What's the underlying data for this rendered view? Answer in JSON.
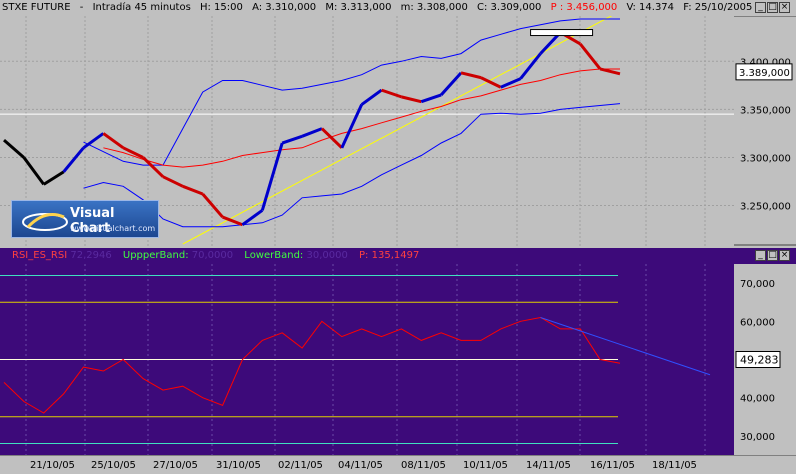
{
  "price_header": {
    "symbol": "STXE FUTURE",
    "interval": "Intradía 45 minutos",
    "hour": "H: 15:00",
    "open": "A: 3.310,000",
    "high": "M: 3.313,000",
    "low": "m: 3.308,000",
    "close": "C: 3.309,000",
    "price": "P : 3.456,000",
    "volume": "V: 14.374",
    "date": "F: 25/10/2005"
  },
  "rsi_header": {
    "name": "RSI_ES_RSI",
    "value": "72,2946",
    "upper_label": "UppperBand:",
    "upper_value": "70,0000",
    "lower_label": "LowerBand:",
    "lower_value": "30,0000",
    "price_label": "P: 135,1497"
  },
  "logo": {
    "brand": "Visual Chart",
    "site": "www.visualchart.com"
  },
  "price_axis_ticks": [
    "3.400,000",
    "3.350,000",
    "3.300,000",
    "3.250,000"
  ],
  "price_current": "3.389,000",
  "rsi_axis_ticks": [
    "70,000",
    "60,000",
    "40,000",
    "30,000"
  ],
  "rsi_current": "49,283",
  "x_ticks": [
    "21/10/05",
    "25/10/05",
    "27/10/05",
    "31/10/05",
    "02/11/05",
    "04/11/05",
    "08/11/05",
    "10/11/05",
    "14/11/05",
    "16/11/05",
    "18/11/05"
  ],
  "colors": {
    "price_bg": "#c0c0c0",
    "rsi_bg": "#3d0a7a",
    "candle_up": "#0000cc",
    "candle_down": "#cc0000",
    "bollinger": "#0000ff",
    "ma": "#ff0000",
    "trendline": "#ffff00",
    "rsi_line": "#ff0000"
  },
  "chart_data": [
    {
      "type": "line",
      "title": "STXE FUTURE",
      "ylim": [
        3210,
        3445
      ],
      "x": [
        0,
        20,
        40,
        60,
        80,
        100,
        120,
        140,
        160,
        180,
        200,
        220,
        240,
        260,
        280,
        300,
        320,
        340,
        360,
        380,
        400,
        420,
        440,
        460,
        480,
        500,
        520,
        540,
        560,
        580,
        600,
        620
      ],
      "series": [
        {
          "name": "price",
          "values": [
            3318,
            3300,
            3272,
            3285,
            3310,
            3325,
            3310,
            3300,
            3280,
            3270,
            3262,
            3238,
            3230,
            3245,
            3315,
            3322,
            3330,
            3310,
            3355,
            3370,
            3363,
            3358,
            3365,
            3388,
            3383,
            3373,
            3382,
            3408,
            3430,
            3418,
            3392,
            3387
          ]
        },
        {
          "name": "upper_band",
          "values": [
            null,
            null,
            null,
            null,
            3316,
            3306,
            3296,
            3292,
            3292,
            3330,
            3368,
            3380,
            3380,
            3375,
            3370,
            3372,
            3376,
            3380,
            3386,
            3396,
            3400,
            3405,
            3403,
            3408,
            3422,
            3428,
            3434,
            3438,
            3442,
            3444,
            3444,
            3444
          ]
        },
        {
          "name": "lower_band",
          "values": [
            null,
            null,
            null,
            null,
            3268,
            3274,
            3270,
            3256,
            3236,
            3228,
            3228,
            3228,
            3230,
            3232,
            3240,
            3258,
            3260,
            3262,
            3270,
            3282,
            3292,
            3302,
            3315,
            3325,
            3345,
            3346,
            3345,
            3346,
            3350,
            3352,
            3354,
            3356
          ]
        },
        {
          "name": "moving_average",
          "values": [
            null,
            null,
            null,
            null,
            null,
            3310,
            3305,
            3298,
            3292,
            3290,
            3292,
            3296,
            3302,
            3305,
            3308,
            3310,
            3318,
            3325,
            3330,
            3336,
            3342,
            3348,
            3353,
            3360,
            3364,
            3370,
            3376,
            3380,
            3386,
            3390,
            3392,
            3392
          ]
        }
      ]
    },
    {
      "type": "line",
      "title": "RSI_ES_RSI",
      "ylim": [
        25,
        75
      ],
      "x": [
        0,
        20,
        40,
        60,
        80,
        100,
        120,
        140,
        160,
        180,
        200,
        220,
        240,
        260,
        280,
        300,
        320,
        340,
        360,
        380,
        400,
        420,
        440,
        460,
        480,
        500,
        520,
        540,
        560,
        580,
        600,
        620
      ],
      "series": [
        {
          "name": "rsi",
          "values": [
            44,
            39,
            36,
            41,
            48,
            47,
            50,
            45,
            42,
            43,
            40,
            38,
            50,
            55,
            57,
            53,
            60,
            56,
            58,
            56,
            58,
            55,
            57,
            55,
            55,
            58,
            60,
            61,
            58,
            58,
            50,
            49
          ]
        }
      ]
    }
  ]
}
